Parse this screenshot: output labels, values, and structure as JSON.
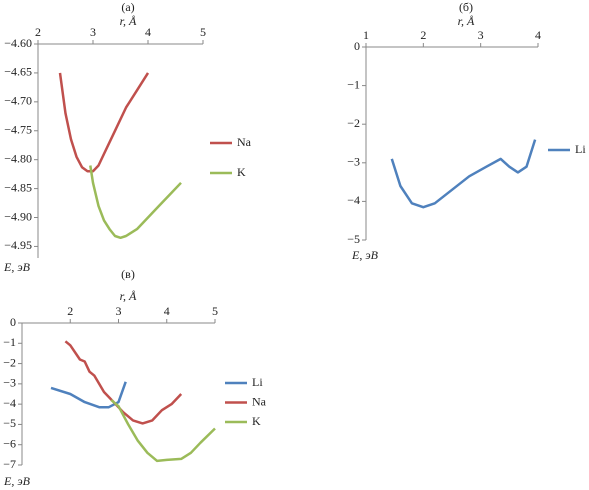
{
  "chart_data": [
    {
      "type": "line",
      "title": "(а)",
      "x_label": "r, Å",
      "y_label": "E, эВ",
      "xlim": [
        2,
        5
      ],
      "xticks": [
        2,
        3,
        4,
        5
      ],
      "ylim": [
        -4.97,
        -4.6
      ],
      "yticks": [
        {
          "value": -4.6,
          "label": "−4.60"
        },
        {
          "value": -4.65,
          "label": "−4.65"
        },
        {
          "value": -4.7,
          "label": "−4.70"
        },
        {
          "value": -4.75,
          "label": "−4.75"
        },
        {
          "value": -4.8,
          "label": "−4.80"
        },
        {
          "value": -4.85,
          "label": "−4.85"
        },
        {
          "value": -4.9,
          "label": "−4.90"
        },
        {
          "value": -4.95,
          "label": "−4.95"
        }
      ],
      "series": [
        {
          "name": "Na",
          "color": "#c0504d",
          "x": [
            2.4,
            2.5,
            2.6,
            2.7,
            2.8,
            2.9,
            3.0,
            3.1,
            3.2,
            3.4,
            3.6,
            3.8,
            4.0
          ],
          "values": [
            -4.65,
            -4.72,
            -4.765,
            -4.795,
            -4.813,
            -4.82,
            -4.82,
            -4.81,
            -4.79,
            -4.75,
            -4.71,
            -4.68,
            -4.65
          ]
        },
        {
          "name": "K",
          "color": "#9bbb59",
          "x": [
            2.95,
            3.0,
            3.1,
            3.2,
            3.3,
            3.4,
            3.5,
            3.6,
            3.8,
            4.0,
            4.2,
            4.4,
            4.6
          ],
          "values": [
            -4.81,
            -4.84,
            -4.88,
            -4.905,
            -4.92,
            -4.932,
            -4.935,
            -4.932,
            -4.92,
            -4.9,
            -4.88,
            -4.86,
            -4.84
          ]
        }
      ]
    },
    {
      "type": "line",
      "title": "(б)",
      "x_label": "r, Å",
      "y_label": "E, эВ",
      "xlim": [
        1,
        4
      ],
      "xticks": [
        1,
        2,
        3,
        4
      ],
      "ylim": [
        -5,
        0
      ],
      "yticks": [
        0,
        {
          "value": -1,
          "label": "−1"
        },
        {
          "value": -2,
          "label": "−2"
        },
        {
          "value": -3,
          "label": "−3"
        },
        {
          "value": -4,
          "label": "−4"
        },
        {
          "value": -5,
          "label": "−5"
        }
      ],
      "series": [
        {
          "name": "Li",
          "color": "#4f81bd",
          "x": [
            1.45,
            1.6,
            1.8,
            2.0,
            2.2,
            2.5,
            2.8,
            3.1,
            3.35,
            3.5,
            3.65,
            3.8,
            3.95
          ],
          "values": [
            -2.9,
            -3.6,
            -4.05,
            -4.15,
            -4.05,
            -3.7,
            -3.35,
            -3.1,
            -2.9,
            -3.1,
            -3.25,
            -3.1,
            -2.4
          ]
        }
      ]
    },
    {
      "type": "line",
      "title": "(в)",
      "x_label": "r, Å",
      "y_label": "E, эВ",
      "xlim": [
        1,
        5
      ],
      "xticks": [
        2,
        3,
        4,
        5
      ],
      "ylim": [
        -7,
        0
      ],
      "yticks": [
        0,
        {
          "value": -1,
          "label": "−1"
        },
        {
          "value": -2,
          "label": "−2"
        },
        {
          "value": -3,
          "label": "−3"
        },
        {
          "value": -4,
          "label": "−4"
        },
        {
          "value": -5,
          "label": "−5"
        },
        {
          "value": -6,
          "label": "−6"
        },
        {
          "value": -7,
          "label": "−7"
        }
      ],
      "series": [
        {
          "name": "Li",
          "color": "#4f81bd",
          "x": [
            1.6,
            2.0,
            2.3,
            2.6,
            2.8,
            3.0,
            3.15
          ],
          "values": [
            -3.2,
            -3.5,
            -3.9,
            -4.15,
            -4.15,
            -3.9,
            -2.9
          ]
        },
        {
          "name": "Na",
          "color": "#c0504d",
          "x": [
            1.9,
            2.0,
            2.2,
            2.3,
            2.4,
            2.5,
            2.7,
            2.9,
            3.1,
            3.3,
            3.5,
            3.7,
            3.9,
            4.1,
            4.3
          ],
          "values": [
            -0.9,
            -1.1,
            -1.8,
            -1.9,
            -2.4,
            -2.6,
            -3.4,
            -3.9,
            -4.4,
            -4.8,
            -4.95,
            -4.8,
            -4.3,
            -4.0,
            -3.5
          ]
        },
        {
          "name": "K",
          "color": "#9bbb59",
          "x": [
            2.85,
            3.0,
            3.2,
            3.4,
            3.6,
            3.8,
            4.0,
            4.3,
            4.5,
            4.7,
            5.0
          ],
          "values": [
            -3.8,
            -4.1,
            -5.0,
            -5.8,
            -6.4,
            -6.8,
            -6.75,
            -6.7,
            -6.4,
            -5.9,
            -5.2
          ]
        }
      ]
    }
  ]
}
